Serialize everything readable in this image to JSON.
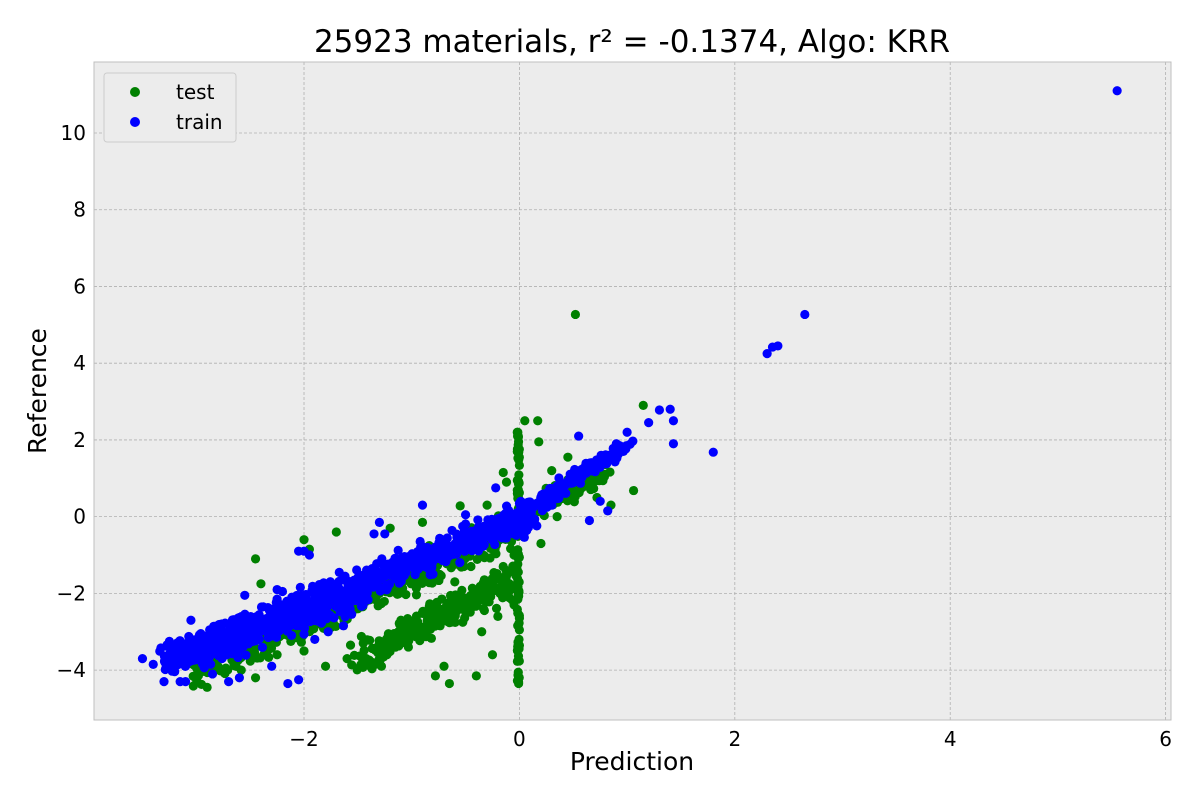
{
  "chart_data": {
    "type": "scatter",
    "title": "25923 materials, r² = -0.1374, Algo: KRR",
    "xlabel": "Prediction",
    "ylabel": "Reference",
    "xlim": [
      -3.95,
      6.05
    ],
    "ylim": [
      -5.3,
      11.85
    ],
    "xticks": [
      -2,
      0,
      2,
      4,
      6
    ],
    "yticks": [
      -4,
      -2,
      0,
      2,
      4,
      6,
      8,
      10
    ],
    "grid": true,
    "legend_position": "top-left",
    "background": "#ececec",
    "series": [
      {
        "name": "test",
        "color": "#008000",
        "points": [
          [
            0.52,
            5.27
          ],
          [
            1.15,
            2.9
          ],
          [
            0.05,
            2.5
          ],
          [
            0.17,
            2.5
          ],
          [
            -0.02,
            2.2
          ],
          [
            0.18,
            1.95
          ],
          [
            -0.15,
            1.15
          ],
          [
            0.45,
            1.55
          ],
          [
            1.06,
            0.68
          ],
          [
            0.85,
            0.3
          ],
          [
            0.2,
            -0.7
          ],
          [
            -0.12,
            0.9
          ],
          [
            0.3,
            1.2
          ],
          [
            0.6,
            0.9
          ],
          [
            0.72,
            0.5
          ],
          [
            0.35,
            0.0
          ],
          [
            -0.3,
            0.3
          ],
          [
            -0.55,
            0.28
          ],
          [
            -0.9,
            -0.15
          ],
          [
            -1.2,
            -0.3
          ],
          [
            -1.7,
            -0.4
          ],
          [
            -2.0,
            -0.6
          ],
          [
            -2.45,
            -1.1
          ],
          [
            -2.4,
            -1.75
          ],
          [
            -1.95,
            -0.85
          ],
          [
            -1.4,
            -1.6
          ],
          [
            -1.0,
            -1.2
          ],
          [
            -0.7,
            -1.0
          ],
          [
            -0.5,
            -2.4
          ],
          [
            -0.3,
            -2.2
          ],
          [
            -0.2,
            -2.6
          ],
          [
            -0.8,
            -2.8
          ],
          [
            -1.1,
            -2.7
          ],
          [
            -0.35,
            -3.0
          ],
          [
            -0.25,
            -3.6
          ],
          [
            -0.4,
            -4.15
          ],
          [
            -0.65,
            -4.35
          ],
          [
            -0.7,
            -3.9
          ],
          [
            -0.78,
            -4.15
          ],
          [
            -1.3,
            -3.8
          ],
          [
            -1.6,
            -3.7
          ],
          [
            -1.8,
            -3.9
          ],
          [
            -2.0,
            -3.5
          ],
          [
            -2.25,
            -3.6
          ],
          [
            -2.45,
            -4.2
          ],
          [
            -1.15,
            -3.4
          ],
          [
            -0.95,
            -3.1
          ],
          [
            -1.45,
            -3.3
          ],
          [
            -0.6,
            -2.2
          ],
          [
            -0.15,
            -1.7
          ],
          [
            -0.05,
            -2.3
          ],
          [
            -0.05,
            -1.0
          ],
          [
            -0.1,
            -0.5
          ],
          [
            -0.6,
            -1.7
          ],
          [
            -1.5,
            -2.4
          ],
          [
            -1.8,
            -2.7
          ],
          [
            -2.2,
            -2.9
          ],
          [
            -0.9,
            -2.5
          ],
          [
            -0.45,
            -1.3
          ],
          [
            -1.3,
            -2.0
          ]
        ],
        "bands": [
          {
            "x0": -3.0,
            "y0": -4.0,
            "x1": -0.02,
            "y1": -0.3,
            "width": 1.3,
            "n": 520
          },
          {
            "x0": -1.5,
            "y0": -3.7,
            "x1": -0.05,
            "y1": -1.6,
            "width": 1.2,
            "n": 280
          },
          {
            "x0": 0.0,
            "y0": 0.0,
            "x1": 0.8,
            "y1": 1.2,
            "width": 0.8,
            "n": 90
          }
        ],
        "vertical_streak": {
          "x": -0.01,
          "y0": -4.35,
          "y1": 2.2,
          "n": 90
        }
      },
      {
        "name": "train",
        "color": "#0000ff",
        "points": [
          [
            5.55,
            11.1
          ],
          [
            2.65,
            5.27
          ],
          [
            2.3,
            4.25
          ],
          [
            2.35,
            4.42
          ],
          [
            2.4,
            4.45
          ],
          [
            1.8,
            1.68
          ],
          [
            1.43,
            1.9
          ],
          [
            1.43,
            2.5
          ],
          [
            1.4,
            2.8
          ],
          [
            1.3,
            2.78
          ],
          [
            1.2,
            2.45
          ],
          [
            0.55,
            2.1
          ],
          [
            1.0,
            2.2
          ],
          [
            0.9,
            1.9
          ],
          [
            0.75,
            0.4
          ],
          [
            0.65,
            -0.1
          ],
          [
            0.82,
            0.15
          ],
          [
            0.0,
            0.35
          ],
          [
            -0.22,
            0.75
          ],
          [
            -0.5,
            0.05
          ],
          [
            -0.9,
            0.3
          ],
          [
            -1.3,
            -0.15
          ],
          [
            -1.25,
            -0.45
          ],
          [
            -1.35,
            -0.45
          ],
          [
            -1.95,
            -1.0
          ],
          [
            -2.05,
            -0.9
          ],
          [
            -2.25,
            -1.9
          ],
          [
            -2.55,
            -2.05
          ],
          [
            -2.2,
            -1.95
          ],
          [
            -3.05,
            -2.7
          ],
          [
            -3.5,
            -3.7
          ],
          [
            -3.4,
            -3.85
          ],
          [
            -3.3,
            -4.3
          ],
          [
            -3.15,
            -4.3
          ],
          [
            -3.1,
            -4.3
          ],
          [
            -3.25,
            -3.25
          ],
          [
            -3.1,
            -3.6
          ],
          [
            -2.85,
            -4.1
          ],
          [
            -2.6,
            -4.2
          ],
          [
            -2.7,
            -4.3
          ],
          [
            -2.15,
            -4.35
          ],
          [
            -2.05,
            -4.25
          ],
          [
            -2.3,
            -3.9
          ],
          [
            -1.9,
            -3.2
          ],
          [
            -2.0,
            -0.9
          ]
        ],
        "bands": [
          {
            "x0": -3.3,
            "y0": -3.8,
            "x1": 0.15,
            "y1": 0.1,
            "width": 1.15,
            "n": 900
          },
          {
            "x0": -3.0,
            "y0": -3.5,
            "x1": -1.5,
            "y1": -2.1,
            "width": 1.3,
            "n": 250
          },
          {
            "x0": 0.0,
            "y0": 0.0,
            "x1": 1.0,
            "y1": 1.9,
            "width": 0.45,
            "n": 160
          }
        ]
      }
    ]
  }
}
